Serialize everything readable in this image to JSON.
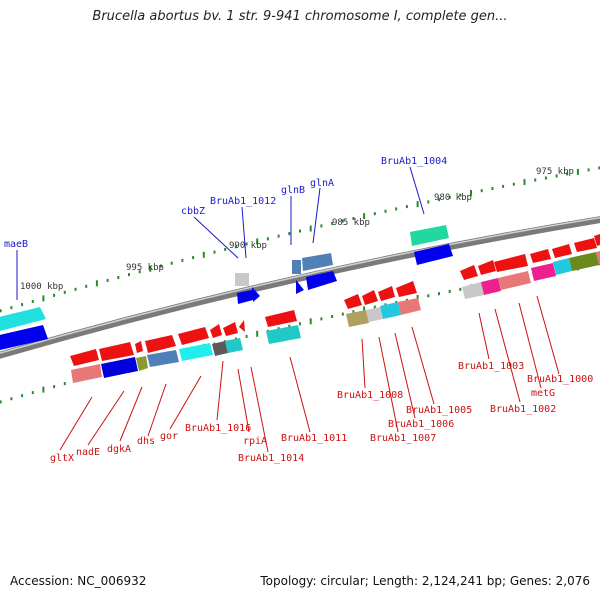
{
  "title": "Brucella abortus bv. 1 str. 9-941 chromosome I, complete gen...",
  "footer": {
    "accession": "Accession: NC_006932",
    "topology": "Topology: circular; Length: 2,124,241 bp; Genes: 2,076"
  },
  "ticks": [
    "1000 kbp",
    "995 kbp",
    "990 kbp",
    "985 kbp",
    "980 kbp",
    "975 kbp"
  ],
  "labels_top": [
    "maeB",
    "cbbZ",
    "BruAb1_1012",
    "glnB",
    "glnA",
    "BruAb1_1004"
  ],
  "labels_bottom": [
    "gltX",
    "nadE",
    "dgkA",
    "dhs",
    "gor",
    "BruAb1_1016",
    "rpiA",
    "BruAb1_1014",
    "BruAb1_1011",
    "BruAb1_1008",
    "BruAb1_1007",
    "BruAb1_1006",
    "BruAb1_1005",
    "BruAb1_1003",
    "BruAb1_1002",
    "metG",
    "BruAb1_1000"
  ],
  "colors": {
    "forward_label": "#1a1acc",
    "reverse_label": "#cc1111",
    "forward_gene": "#0000ee",
    "reverse_gene": "#ee0000",
    "backbone": "#808080"
  }
}
